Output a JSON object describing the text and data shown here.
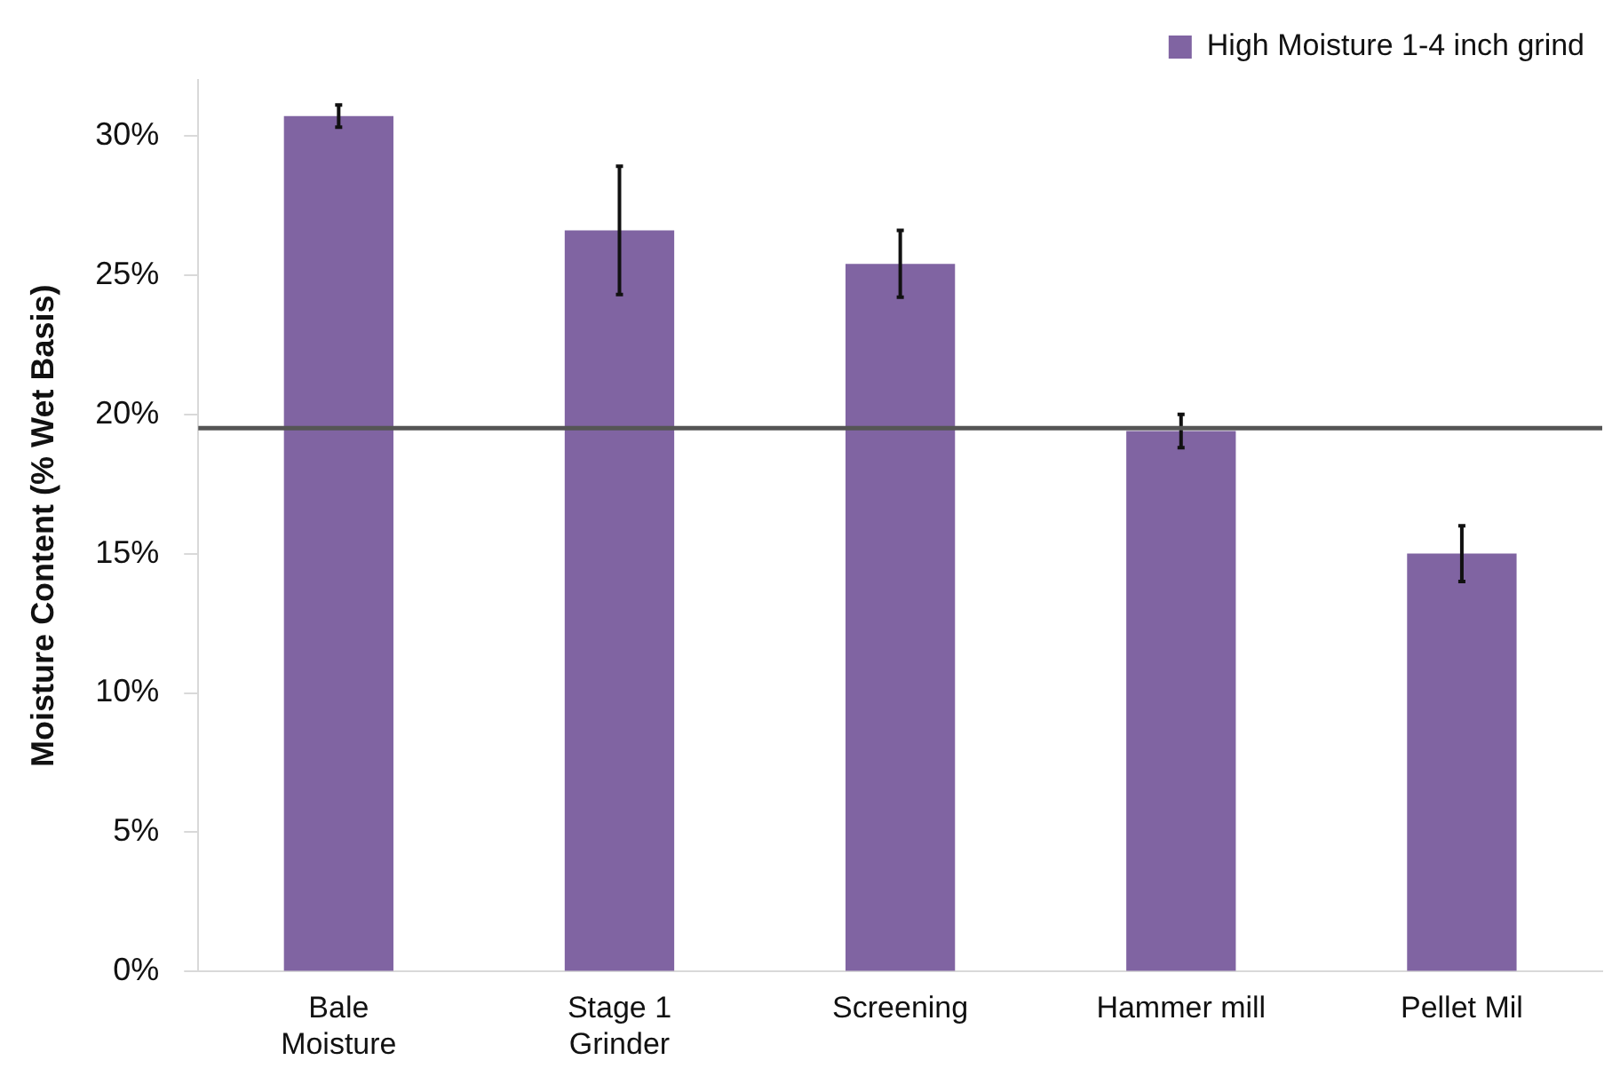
{
  "chart_data": {
    "type": "bar",
    "ylabel": "Moisture Content (% Wet Basis)",
    "categories": [
      "Bale Moisture",
      "Stage 1 Grinder",
      "Screening",
      "Hammer mill",
      "Pellet Mil"
    ],
    "series": [
      {
        "name": "High Moisture 1-4 inch grind",
        "color": "#8064a2",
        "values": [
          30.7,
          26.6,
          25.4,
          19.4,
          15.0
        ],
        "errors": [
          0.4,
          2.3,
          1.2,
          0.6,
          1.0
        ]
      }
    ],
    "ylim": [
      0,
      32
    ],
    "yticks": [
      {
        "value": 0,
        "label": "0%"
      },
      {
        "value": 5,
        "label": "5%"
      },
      {
        "value": 10,
        "label": "10%"
      },
      {
        "value": 15,
        "label": "15%"
      },
      {
        "value": 20,
        "label": "20%"
      },
      {
        "value": 25,
        "label": "25%"
      },
      {
        "value": 30,
        "label": "30%"
      }
    ],
    "ref_lines": [
      {
        "axis": "y",
        "value": 19.5,
        "color": "#555555"
      }
    ],
    "grid": false,
    "legend": "top right"
  }
}
